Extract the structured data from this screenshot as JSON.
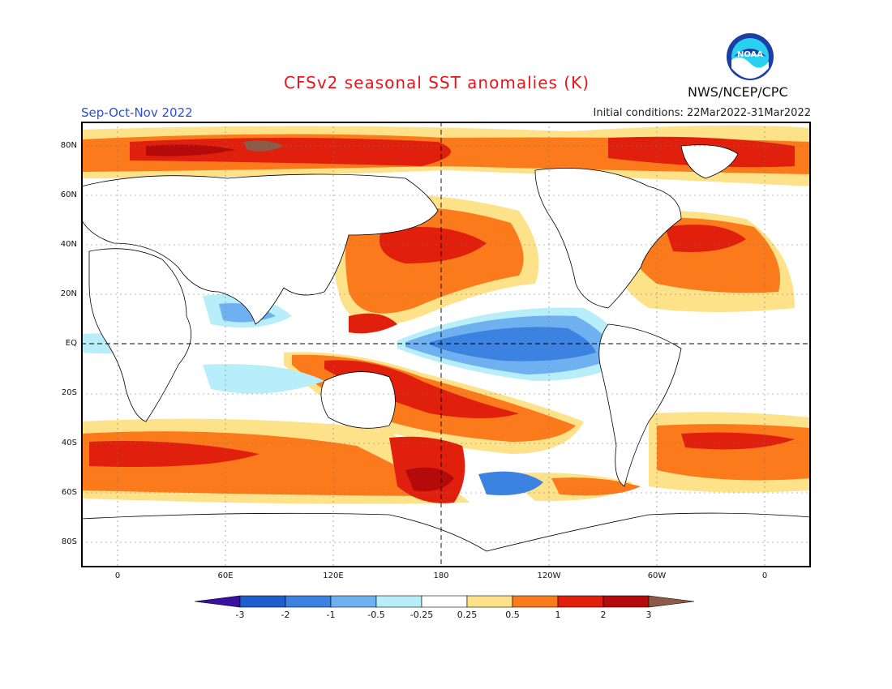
{
  "header": {
    "title": "CFSv2 seasonal SST anomalies (K)",
    "agency": "NWS/NCEP/CPC",
    "season": "Sep-Oct-Nov 2022",
    "initial_conditions": "Initial conditions: 22Mar2022-31Mar2022",
    "logo_text": "NOAA"
  },
  "map": {
    "lat_labels": [
      "80N",
      "60N",
      "40N",
      "20N",
      "EQ",
      "20S",
      "40S",
      "60S",
      "80S"
    ],
    "lon_labels": [
      "0",
      "60E",
      "120E",
      "180",
      "120W",
      "60W",
      "0"
    ]
  },
  "colorbar": {
    "labels": [
      "-3",
      "-2",
      "-1",
      "-0.5",
      "-0.25",
      "0.25",
      "0.5",
      "1",
      "2",
      "3"
    ],
    "colors": [
      "#3b0fa0",
      "#1f5fcc",
      "#3c82e0",
      "#6fb0f0",
      "#b8eefa",
      "#ffffff",
      "#fde28a",
      "#fb7a1c",
      "#e0200c",
      "#b40a0a",
      "#8c5a46"
    ]
  },
  "colors": {
    "title": "#e8141c",
    "season": "#2b4fd8",
    "land": "#ffffff",
    "coast": "#000000"
  }
}
